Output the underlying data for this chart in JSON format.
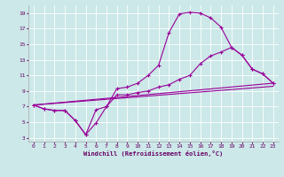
{
  "xlabel": "Windchill (Refroidissement éolien,°C)",
  "bg_color": "#cce8e8",
  "line_color": "#990099",
  "grid_color": "#ffffff",
  "xlim": [
    -0.5,
    23.5
  ],
  "ylim": [
    2.5,
    20.0
  ],
  "xticks": [
    0,
    1,
    2,
    3,
    4,
    5,
    6,
    7,
    8,
    9,
    10,
    11,
    12,
    13,
    14,
    15,
    16,
    17,
    18,
    19,
    20,
    21,
    22,
    23
  ],
  "yticks": [
    3,
    5,
    7,
    9,
    11,
    13,
    15,
    17,
    19
  ],
  "line1_x": [
    0,
    1,
    2,
    3,
    4,
    5,
    6,
    7,
    8,
    9,
    10,
    11,
    12,
    13,
    14,
    15,
    16,
    17,
    18,
    19,
    20,
    21,
    22,
    23
  ],
  "line1_y": [
    7.2,
    6.7,
    6.5,
    6.5,
    5.2,
    3.4,
    4.9,
    7.0,
    9.3,
    9.5,
    10.0,
    11.0,
    12.3,
    16.5,
    18.9,
    19.1,
    19.0,
    18.4,
    17.2,
    14.6,
    13.6,
    11.8,
    11.2,
    10.0
  ],
  "line2_x": [
    0,
    1,
    2,
    3,
    4,
    5,
    6,
    7,
    8,
    9,
    10,
    11,
    12,
    13,
    14,
    15,
    16,
    17,
    18,
    19,
    20,
    21,
    22,
    23
  ],
  "line2_y": [
    7.2,
    6.7,
    6.5,
    6.5,
    5.2,
    3.4,
    6.6,
    7.0,
    8.5,
    8.5,
    8.8,
    9.0,
    9.5,
    9.8,
    10.5,
    11.0,
    12.5,
    13.5,
    14.0,
    14.6,
    13.6,
    11.8,
    11.2,
    10.0
  ],
  "line3_x": [
    0,
    23
  ],
  "line3_y": [
    7.2,
    10.0
  ],
  "line4_x": [
    0,
    23
  ],
  "line4_y": [
    7.2,
    9.6
  ]
}
